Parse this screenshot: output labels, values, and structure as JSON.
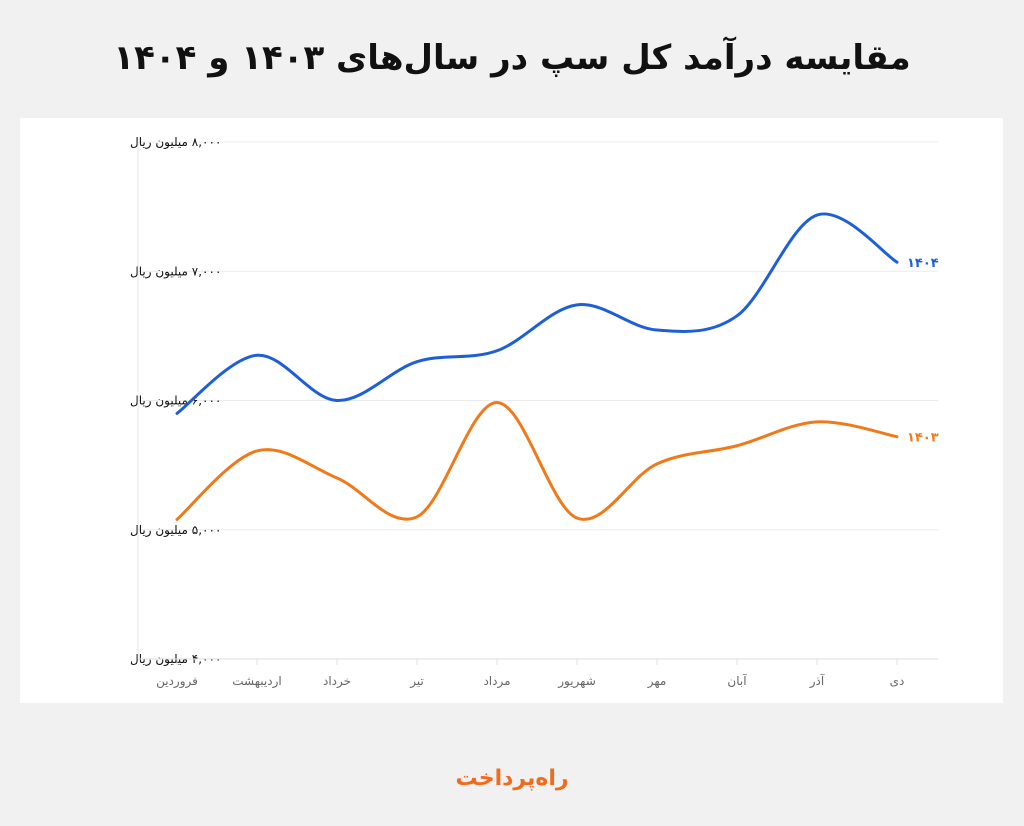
{
  "title": "مقایسه درآمد کل سپ در سال‌های ۱۴۰۳ و ۱۴۰۴",
  "logo_text": "راه‌پرداخت",
  "chart_data": {
    "type": "line",
    "title": "مقایسه درآمد کل سپ در سال‌های ۱۴۰۳ و ۱۴۰۴",
    "xlabel": "",
    "ylabel": "",
    "categories": [
      "فروردین",
      "اردیبهشت",
      "خرداد",
      "تیر",
      "مرداد",
      "شهریور",
      "مهر",
      "آبان",
      "آذر",
      "دی"
    ],
    "ylim": [
      4000,
      8000
    ],
    "yticks": [
      4000,
      5000,
      6000,
      7000,
      8000
    ],
    "ytick_labels": [
      "۴,۰۰۰ میلیون ریال",
      "۵,۰۰۰ میلیون ریال",
      "۶,۰۰۰ میلیون ریال",
      "۷,۰۰۰ میلیون ریال",
      "۸,۰۰۰ میلیون ریال"
    ],
    "grid": true,
    "legend": "inline-right-end",
    "series": [
      {
        "name": "۱۴۰۴",
        "color": "#1f5fd6",
        "values": [
          5900,
          6350,
          6000,
          6300,
          6385,
          6740,
          6545,
          6655,
          7435,
          7070
        ]
      },
      {
        "name": "۱۴۰۳",
        "color": "#f07a1a",
        "values": [
          5080,
          5610,
          5400,
          5100,
          5985,
          5090,
          5510,
          5650,
          5835,
          5720
        ]
      }
    ]
  }
}
